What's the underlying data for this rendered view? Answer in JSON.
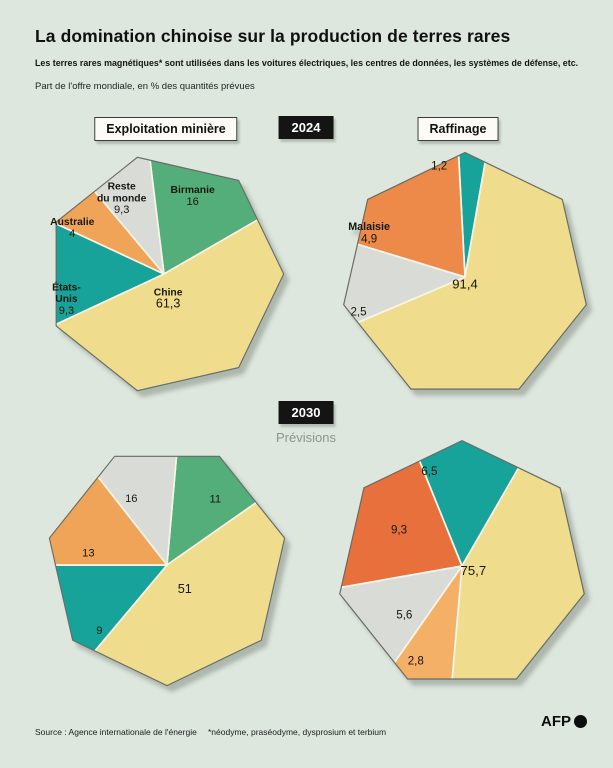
{
  "header": {
    "title": "La domination chinoise sur la production de terres rares",
    "subtitle": "Les terres rares magnétiques* sont utilisées dans les voitures électriques, les centres de données, les systèmes de défense, etc.",
    "note": "Part de l'offre mondiale, en % des quantités prévues"
  },
  "labels": {
    "mining": "Exploitation minière",
    "refining": "Raffinage",
    "year_top": "2024",
    "year_bottom": "2030",
    "forecast": "Prévisions"
  },
  "footer": {
    "source": "Source : Agence internationale de l'énergie",
    "footnote": "*néodyme, praséodyme, dysprosium et terbium",
    "logo": "AFP"
  },
  "colors": {
    "background": "#dde7de",
    "china_yellow": "#efdc8c",
    "green": "#53ae7a",
    "teal": "#17a29a",
    "orange": "#f0a458",
    "orange_malaysia": "#ed8a4a",
    "orange_dark": "#e8703c",
    "orange_light": "#f4b066",
    "grey": "#d9dbd6",
    "badge_black": "#141414"
  },
  "chart_data": [
    {
      "type": "pie",
      "shape": "heptagon",
      "group": "Exploitation minière",
      "year": "2024",
      "unit": "% de l'offre mondiale",
      "segments": [
        {
          "label": "Birmanie",
          "value": 16,
          "display": "16",
          "color": "#53ae7a"
        },
        {
          "label": "Chine",
          "value": 61.3,
          "display": "61,3",
          "color": "#efdc8c"
        },
        {
          "label": "États-\nUnis",
          "value": 9.3,
          "display": "9,3",
          "color": "#17a29a"
        },
        {
          "label": "Australie",
          "value": 4,
          "display": "4",
          "color": "#f0a458"
        },
        {
          "label": "Reste\ndu monde",
          "value": 9.3,
          "display": "9,3",
          "color": "#d9dbd6"
        }
      ]
    },
    {
      "type": "pie",
      "shape": "heptagon",
      "group": "Raffinage",
      "year": "2024",
      "unit": "% de l'offre mondiale",
      "segments": [
        {
          "label": "",
          "value": 1.2,
          "display": "1,2",
          "color": "#17a29a"
        },
        {
          "label": "",
          "value": 91.4,
          "display": "91,4",
          "color": "#efdc8c"
        },
        {
          "label": "",
          "value": 2.5,
          "display": "2,5",
          "color": "#d9dbd6"
        },
        {
          "label": "Malaisie",
          "value": 4.9,
          "display": "4,9",
          "color": "#ed8a4a"
        }
      ]
    },
    {
      "type": "pie",
      "shape": "heptagon",
      "group": "Exploitation minière",
      "year": "2030",
      "unit": "% de l'offre mondiale",
      "segments": [
        {
          "label": "",
          "value": 11,
          "display": "11",
          "color": "#53ae7a"
        },
        {
          "label": "",
          "value": 51,
          "display": "51",
          "color": "#efdc8c"
        },
        {
          "label": "",
          "value": 9,
          "display": "9",
          "color": "#17a29a"
        },
        {
          "label": "",
          "value": 13,
          "display": "13",
          "color": "#f0a458"
        },
        {
          "label": "",
          "value": 16,
          "display": "16",
          "color": "#d9dbd6"
        }
      ]
    },
    {
      "type": "pie",
      "shape": "heptagon",
      "group": "Raffinage",
      "year": "2030",
      "unit": "% de l'offre mondiale",
      "segments": [
        {
          "label": "",
          "value": 6.5,
          "display": "6,5",
          "color": "#17a29a"
        },
        {
          "label": "",
          "value": 75.7,
          "display": "75,7",
          "color": "#efdc8c"
        },
        {
          "label": "",
          "value": 2.8,
          "display": "2,8",
          "color": "#f4b066"
        },
        {
          "label": "",
          "value": 5.6,
          "display": "5,6",
          "color": "#d9dbd6"
        },
        {
          "label": "",
          "value": 9.3,
          "display": "9,3",
          "color": "#e8703c"
        }
      ]
    }
  ]
}
